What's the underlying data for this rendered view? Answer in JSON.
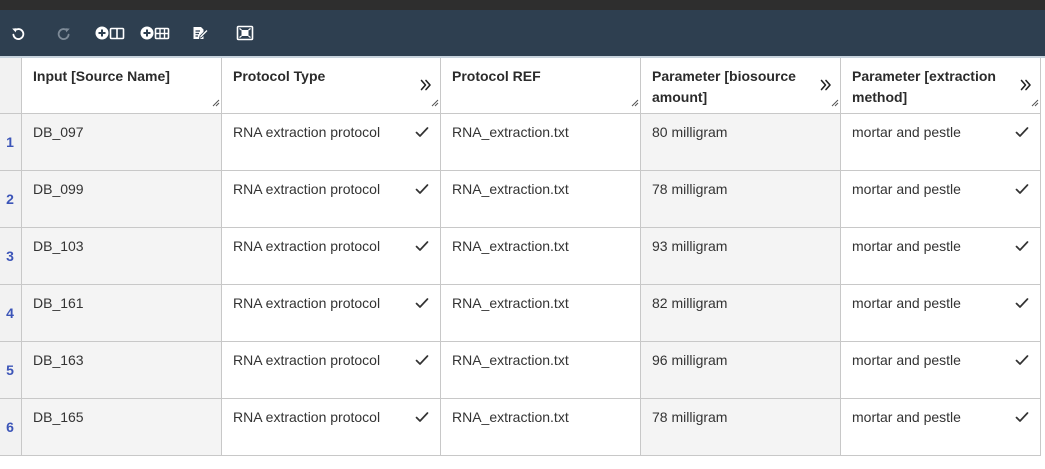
{
  "toolbar": {
    "buttons": [
      {
        "icon": "undo-icon"
      },
      {
        "icon": "redo-icon"
      },
      {
        "icon": "add-column-icon"
      },
      {
        "icon": "add-building-block-icon"
      },
      {
        "icon": "edit-table-icon"
      },
      {
        "icon": "fit-table-icon"
      }
    ]
  },
  "table": {
    "columns": [
      {
        "label": "Input [Source Name]",
        "expandable": false,
        "checked": false
      },
      {
        "label": "Protocol Type",
        "expandable": true,
        "checked": true
      },
      {
        "label": "Protocol REF",
        "expandable": false,
        "checked": false
      },
      {
        "label": "Parameter [biosource amount]",
        "expandable": true,
        "checked": false
      },
      {
        "label": "Parameter [extraction method]",
        "expandable": true,
        "checked": true
      }
    ],
    "rows": [
      {
        "num": "1",
        "cells": [
          "DB_097",
          "RNA extraction protocol",
          "RNA_extraction.txt",
          "80 milligram",
          "mortar and pestle"
        ]
      },
      {
        "num": "2",
        "cells": [
          "DB_099",
          "RNA extraction protocol",
          "RNA_extraction.txt",
          "78 milligram",
          "mortar and pestle"
        ]
      },
      {
        "num": "3",
        "cells": [
          "DB_103",
          "RNA extraction protocol",
          "RNA_extraction.txt",
          "93 milligram",
          "mortar and pestle"
        ]
      },
      {
        "num": "4",
        "cells": [
          "DB_161",
          "RNA extraction protocol",
          "RNA_extraction.txt",
          "82 milligram",
          "mortar and pestle"
        ]
      },
      {
        "num": "5",
        "cells": [
          "DB_163",
          "RNA extraction protocol",
          "RNA_extraction.txt",
          "96 milligram",
          "mortar and pestle"
        ]
      },
      {
        "num": "6",
        "cells": [
          "DB_165",
          "RNA extraction protocol",
          "RNA_extraction.txt",
          "78 milligram",
          "mortar and pestle"
        ]
      }
    ]
  },
  "colors": {
    "toolbar_bg": "#2e3f50",
    "row_number": "#3c55b8",
    "alt_cell_bg": "#f4f4f4"
  }
}
